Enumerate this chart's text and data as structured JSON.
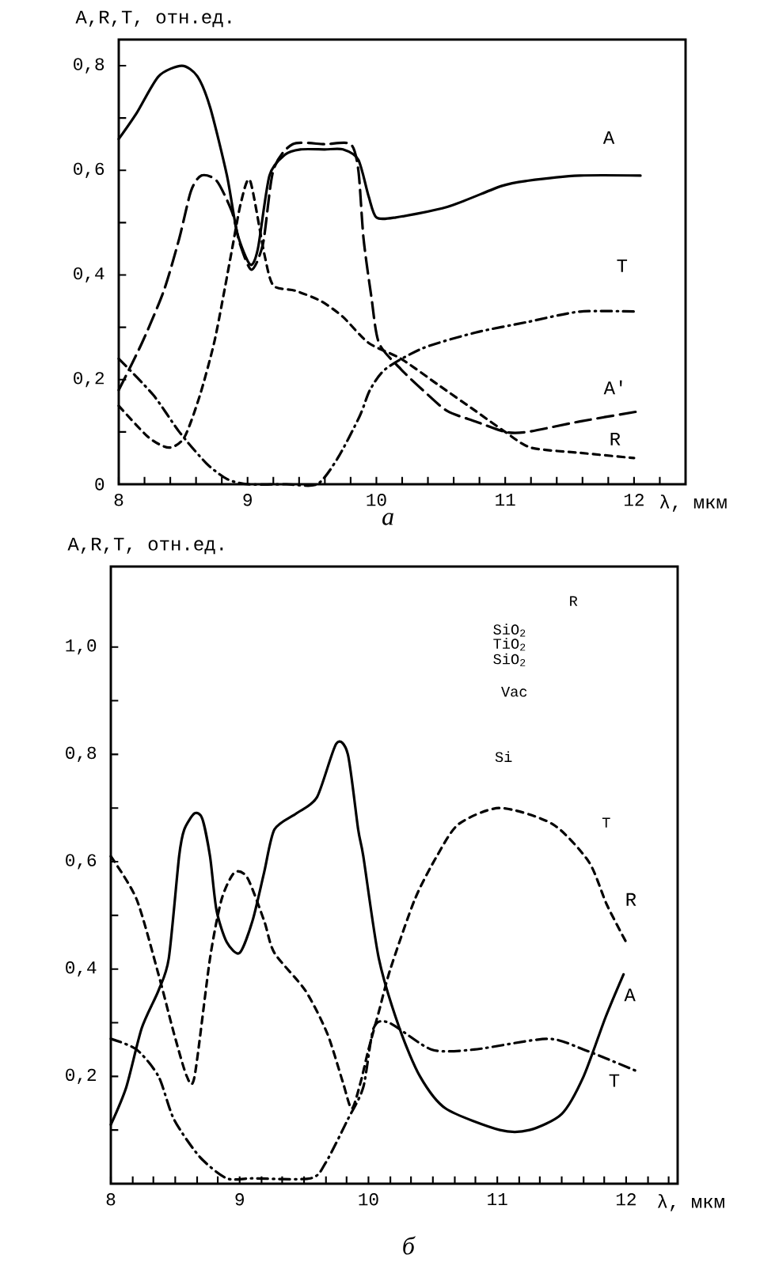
{
  "chart_data": [
    {
      "type": "line",
      "title": "а",
      "xlabel": "λ, мкм",
      "ylabel": "A,R,T, отн.ед.",
      "xlim": [
        8,
        12.4
      ],
      "ylim": [
        0,
        0.85
      ],
      "xticks": [
        8,
        {
          "value": 8.2,
          "label": null
        },
        {
          "value": 8.4,
          "label": null
        },
        {
          "value": 8.6,
          "label": null
        },
        {
          "value": 8.8,
          "label": null
        },
        9,
        {
          "value": 9.2,
          "label": null
        },
        {
          "value": 9.4,
          "label": null
        },
        {
          "value": 9.6,
          "label": null
        },
        {
          "value": 9.8,
          "label": null
        },
        10,
        {
          "value": 10.2,
          "label": null
        },
        {
          "value": 10.4,
          "label": null
        },
        {
          "value": 10.6,
          "label": null
        },
        {
          "value": 10.8,
          "label": null
        },
        11,
        {
          "value": 11.2,
          "label": null
        },
        {
          "value": 11.4,
          "label": null
        },
        {
          "value": 11.6,
          "label": null
        },
        {
          "value": 11.8,
          "label": null
        },
        12,
        {
          "value": 12.2,
          "label": null
        }
      ],
      "yticks": [
        0,
        {
          "value": 0.1,
          "label": null
        },
        {
          "value": 0.2,
          "label": "0,2"
        },
        {
          "value": 0.3,
          "label": null
        },
        {
          "value": 0.4,
          "label": "0,4"
        },
        {
          "value": 0.5,
          "label": null
        },
        {
          "value": 0.6,
          "label": "0,6"
        },
        {
          "value": 0.7,
          "label": null
        },
        {
          "value": 0.8,
          "label": "0,8"
        }
      ],
      "series": [
        {
          "name": "A",
          "color": "#000000",
          "line_style": "solid",
          "x": [
            8,
            8.14,
            8.31,
            8.49,
            8.61,
            8.71,
            8.84,
            8.92,
            9.02,
            9.08,
            9.17,
            9.29,
            9.41,
            9.6,
            9.74,
            9.86,
            9.94,
            10.0,
            10.15,
            10.55,
            10.97,
            11.17,
            11.58,
            12.05
          ],
          "values": [
            0.66,
            0.71,
            0.78,
            0.8,
            0.78,
            0.72,
            0.59,
            0.48,
            0.42,
            0.45,
            0.59,
            0.63,
            0.64,
            0.64,
            0.64,
            0.62,
            0.55,
            0.51,
            0.51,
            0.53,
            0.57,
            0.58,
            0.59,
            0.59
          ]
        },
        {
          "name": "T",
          "color": "#000000",
          "line_style": "dash dot",
          "x": [
            8,
            8.27,
            8.47,
            8.68,
            8.84,
            9.0,
            9.3,
            9.54,
            9.7,
            9.87,
            9.95,
            10.07,
            10.36,
            10.77,
            11.17,
            11.58,
            12.03
          ],
          "values": [
            0.24,
            0.17,
            0.1,
            0.04,
            0.01,
            0,
            0,
            0,
            0.05,
            0.13,
            0.18,
            0.22,
            0.26,
            0.29,
            0.31,
            0.33,
            0.33
          ]
        },
        {
          "name": "A'",
          "color": "#000000",
          "line_style": "long dashed",
          "x": [
            8,
            8.18,
            8.35,
            8.47,
            8.56,
            8.64,
            8.76,
            8.88,
            8.94,
            9.03,
            9.12,
            9.2,
            9.35,
            9.6,
            9.8,
            9.86,
            9.9,
            9.96,
            10.02,
            10.19,
            10.36,
            10.55,
            10.77,
            11.0,
            11.17,
            11.58,
            12.05
          ],
          "values": [
            0.18,
            0.27,
            0.37,
            0.47,
            0.56,
            0.59,
            0.58,
            0.52,
            0.46,
            0.41,
            0.46,
            0.6,
            0.65,
            0.65,
            0.65,
            0.6,
            0.47,
            0.36,
            0.27,
            0.22,
            0.18,
            0.14,
            0.12,
            0.1,
            0.1,
            0.12,
            0.14
          ]
        },
        {
          "name": "R",
          "color": "#000000",
          "line_style": "dashed",
          "x": [
            8,
            8.23,
            8.39,
            8.51,
            8.63,
            8.74,
            8.82,
            8.88,
            8.95,
            9.02,
            9.13,
            9.2,
            9.37,
            9.57,
            9.74,
            9.94,
            10.19,
            10.48,
            10.77,
            11.0,
            11.2,
            11.58,
            12.0
          ],
          "values": [
            0.15,
            0.09,
            0.07,
            0.09,
            0.17,
            0.27,
            0.37,
            0.45,
            0.54,
            0.58,
            0.44,
            0.38,
            0.37,
            0.35,
            0.32,
            0.27,
            0.24,
            0.19,
            0.14,
            0.1,
            0.07,
            0.06,
            0.05
          ]
        }
      ]
    },
    {
      "type": "line",
      "title": "б",
      "xlabel": "λ, мкм",
      "ylabel": "A,R,T, отн.ед.",
      "xlim": [
        8,
        12.4
      ],
      "ylim": [
        0,
        1.15
      ],
      "xticks": [
        8,
        {
          "value": 8.17,
          "label": null
        },
        {
          "value": 8.33,
          "label": null
        },
        {
          "value": 8.5,
          "label": null
        },
        {
          "value": 8.67,
          "label": null
        },
        {
          "value": 8.83,
          "label": null
        },
        9,
        {
          "value": 9.17,
          "label": null
        },
        {
          "value": 9.33,
          "label": null
        },
        {
          "value": 9.5,
          "label": null
        },
        {
          "value": 9.67,
          "label": null
        },
        {
          "value": 9.83,
          "label": null
        },
        10,
        {
          "value": 10.17,
          "label": null
        },
        {
          "value": 10.33,
          "label": null
        },
        {
          "value": 10.5,
          "label": null
        },
        {
          "value": 10.67,
          "label": null
        },
        {
          "value": 10.83,
          "label": null
        },
        11,
        {
          "value": 11.17,
          "label": null
        },
        {
          "value": 11.33,
          "label": null
        },
        {
          "value": 11.5,
          "label": null
        },
        {
          "value": 11.67,
          "label": null
        },
        {
          "value": 11.83,
          "label": null
        },
        12,
        {
          "value": 12.17,
          "label": null
        },
        {
          "value": 12.33,
          "label": null
        }
      ],
      "yticks": [
        {
          "value": 0.1,
          "label": null
        },
        {
          "value": 0.2,
          "label": "0,2"
        },
        {
          "value": 0.3,
          "label": null
        },
        {
          "value": 0.4,
          "label": "0,4"
        },
        {
          "value": 0.5,
          "label": null
        },
        {
          "value": 0.6,
          "label": "0,6"
        },
        {
          "value": 0.7,
          "label": null
        },
        {
          "value": 0.8,
          "label": "0,8"
        },
        {
          "value": 0.9,
          "label": null
        },
        {
          "value": 1.0,
          "label": "1,0"
        }
      ],
      "annotations": [
        "R",
        "SiO$_{2}$",
        "TiO$_{2}$",
        "SiO$_{2}$",
        "Vac",
        "Si",
        "T"
      ],
      "series": [
        {
          "name": "R",
          "color": "#000000",
          "line_style": "dashed",
          "x": [
            8,
            8.2,
            8.37,
            8.49,
            8.59,
            8.65,
            8.77,
            8.86,
            8.96,
            9.06,
            9.19,
            9.27,
            9.51,
            9.68,
            9.8,
            9.87,
            9.94,
            10.0,
            10.08,
            10.17,
            10.36,
            10.53,
            10.7,
            11.02,
            11.43,
            11.71,
            11.85,
            12.0
          ],
          "values": [
            0.61,
            0.53,
            0.39,
            0.28,
            0.2,
            0.2,
            0.42,
            0.53,
            0.58,
            0.57,
            0.49,
            0.43,
            0.36,
            0.28,
            0.19,
            0.14,
            0.19,
            0.25,
            0.32,
            0.4,
            0.53,
            0.61,
            0.67,
            0.7,
            0.67,
            0.6,
            0.52,
            0.45
          ]
        },
        {
          "name": "A",
          "color": "#000000",
          "line_style": "solid",
          "x": [
            8,
            8.12,
            8.24,
            8.37,
            8.45,
            8.53,
            8.57,
            8.65,
            8.71,
            8.77,
            8.82,
            8.9,
            9.0,
            9.1,
            9.19,
            9.27,
            9.44,
            9.6,
            9.75,
            9.84,
            9.92,
            9.96,
            10.08,
            10.24,
            10.4,
            10.6,
            11.02,
            11.25,
            11.5,
            11.67,
            11.84,
            11.98
          ],
          "values": [
            0.11,
            0.18,
            0.29,
            0.36,
            0.42,
            0.61,
            0.66,
            0.69,
            0.68,
            0.61,
            0.51,
            0.45,
            0.43,
            0.49,
            0.58,
            0.66,
            0.69,
            0.72,
            0.82,
            0.8,
            0.66,
            0.61,
            0.42,
            0.29,
            0.2,
            0.14,
            0.1,
            0.1,
            0.13,
            0.2,
            0.31,
            0.39
          ]
        },
        {
          "name": "T",
          "color": "#000000",
          "line_style": "dash dot",
          "x": [
            8,
            8.2,
            8.37,
            8.49,
            8.69,
            8.9,
            9.1,
            9.55,
            9.67,
            9.84,
            9.96,
            10.04,
            10.16,
            10.49,
            10.82,
            11.39,
            11.67,
            12.08
          ],
          "values": [
            0.27,
            0.25,
            0.2,
            0.12,
            0.05,
            0.01,
            0.01,
            0.01,
            0.04,
            0.12,
            0.18,
            0.29,
            0.3,
            0.25,
            0.25,
            0.27,
            0.25,
            0.21
          ]
        }
      ]
    }
  ]
}
